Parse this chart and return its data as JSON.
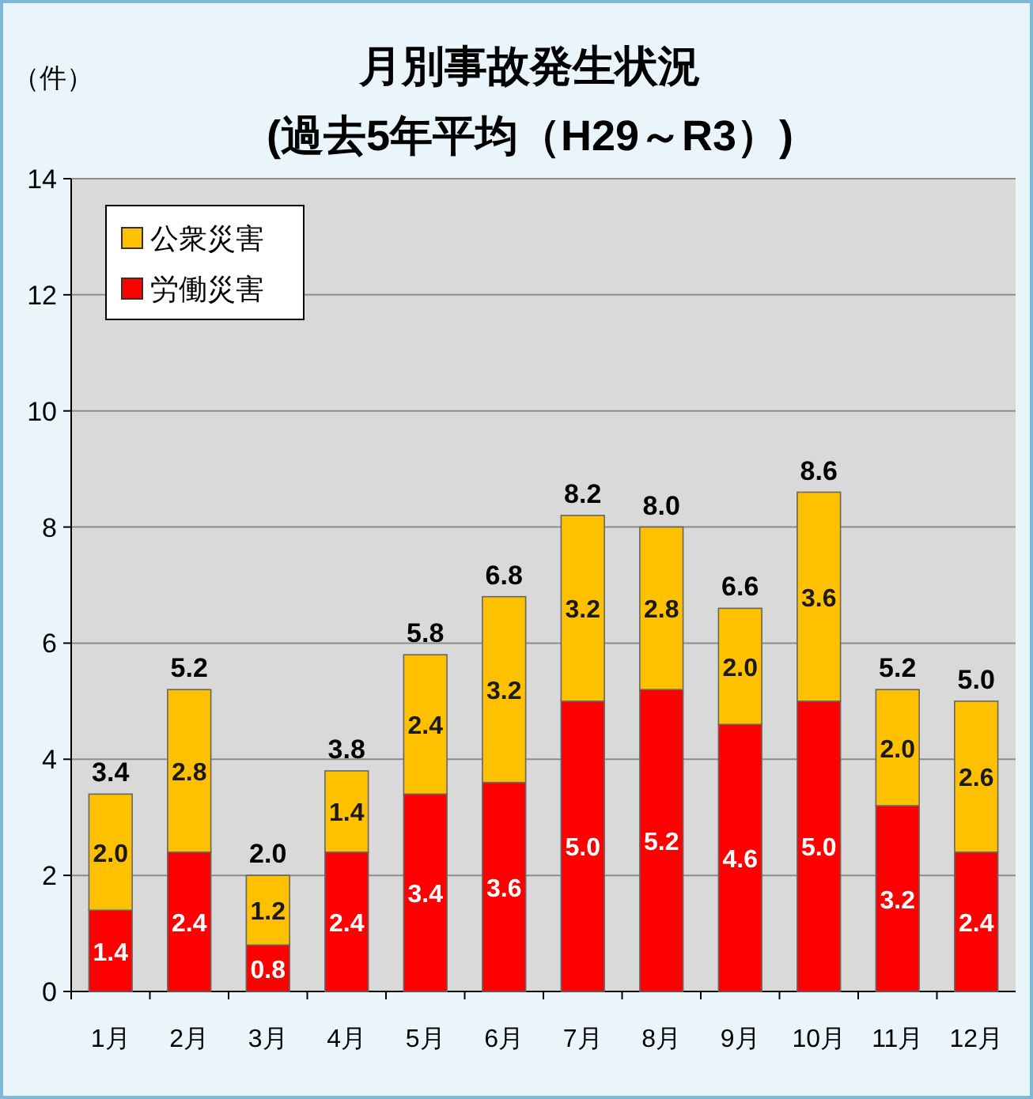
{
  "chart_data": {
    "type": "bar",
    "title": "月別事故発生状況",
    "subtitle": "(過去5年平均（H29～R3）)",
    "ylabel": "（件）",
    "categories": [
      "1月",
      "2月",
      "3月",
      "4月",
      "5月",
      "6月",
      "7月",
      "8月",
      "9月",
      "10月",
      "11月",
      "12月"
    ],
    "stacked": true,
    "series": [
      {
        "name": "労働災害",
        "color": "#ff0000",
        "values": [
          1.4,
          2.4,
          0.8,
          2.4,
          3.4,
          3.6,
          5.0,
          5.2,
          4.6,
          5.0,
          3.2,
          2.4
        ],
        "value_labels": [
          "1.4",
          "2.4",
          "0.8",
          "2.4",
          "3.4",
          "3.6",
          "5.0",
          "5.2",
          "4.6",
          "5.0",
          "3.2",
          "2.4"
        ]
      },
      {
        "name": "公衆災害",
        "color": "#ffc000",
        "values": [
          2.0,
          2.8,
          1.2,
          1.4,
          2.4,
          3.2,
          3.2,
          2.8,
          2.0,
          3.6,
          2.0,
          2.6
        ],
        "value_labels": [
          "2.0",
          "2.8",
          "1.2",
          "1.4",
          "2.4",
          "3.2",
          "3.2",
          "2.8",
          "2.0",
          "3.6",
          "2.0",
          "2.6"
        ]
      }
    ],
    "totals": [
      "3.4",
      "5.2",
      "2.0",
      "3.8",
      "5.8",
      "6.8",
      "8.2",
      "8.0",
      "6.6",
      "8.6",
      "5.2",
      "5.0"
    ],
    "ylim": [
      0,
      14
    ],
    "yticks": [
      0,
      2,
      4,
      6,
      8,
      10,
      12,
      14
    ],
    "grid": "y",
    "legend": "top left"
  }
}
